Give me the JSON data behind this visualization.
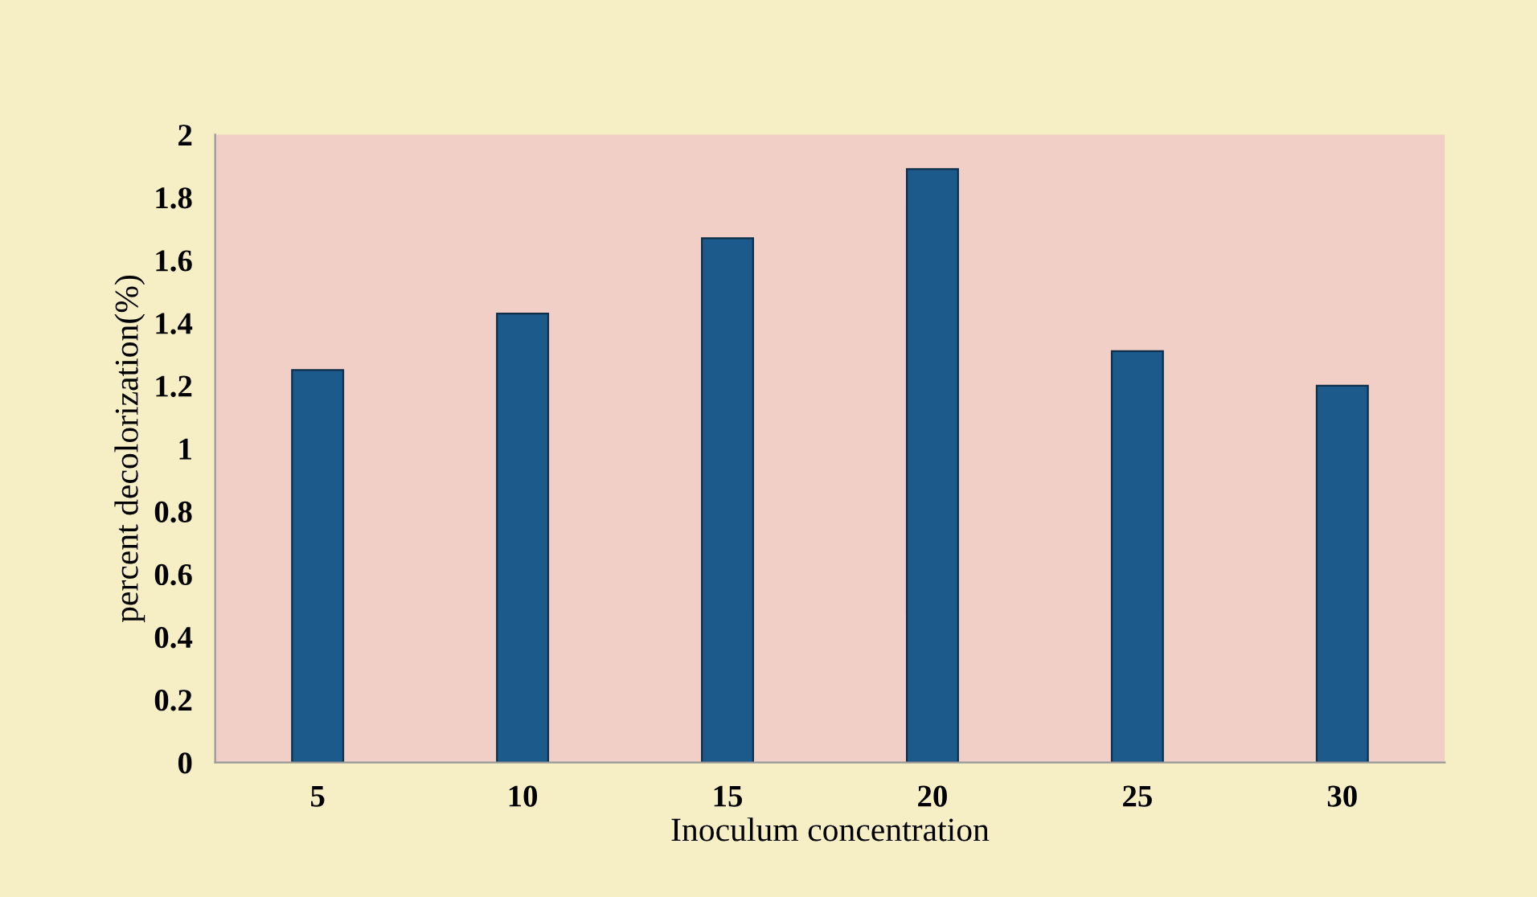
{
  "chart_data": {
    "type": "bar",
    "xlabel": "Inoculum concentration",
    "ylabel": "percent decolorization(%)",
    "categories": [
      "5",
      "10",
      "15",
      "20",
      "25",
      "30"
    ],
    "values": [
      1.25,
      1.43,
      1.67,
      1.89,
      1.31,
      1.2
    ],
    "color": "#1b5a8a",
    "ylim": [
      0,
      2
    ],
    "yticks": [
      0,
      0.2,
      0.4,
      0.6,
      0.8,
      1,
      1.2,
      1.4,
      1.6,
      1.8,
      2
    ],
    "grid": false,
    "legend": false
  }
}
